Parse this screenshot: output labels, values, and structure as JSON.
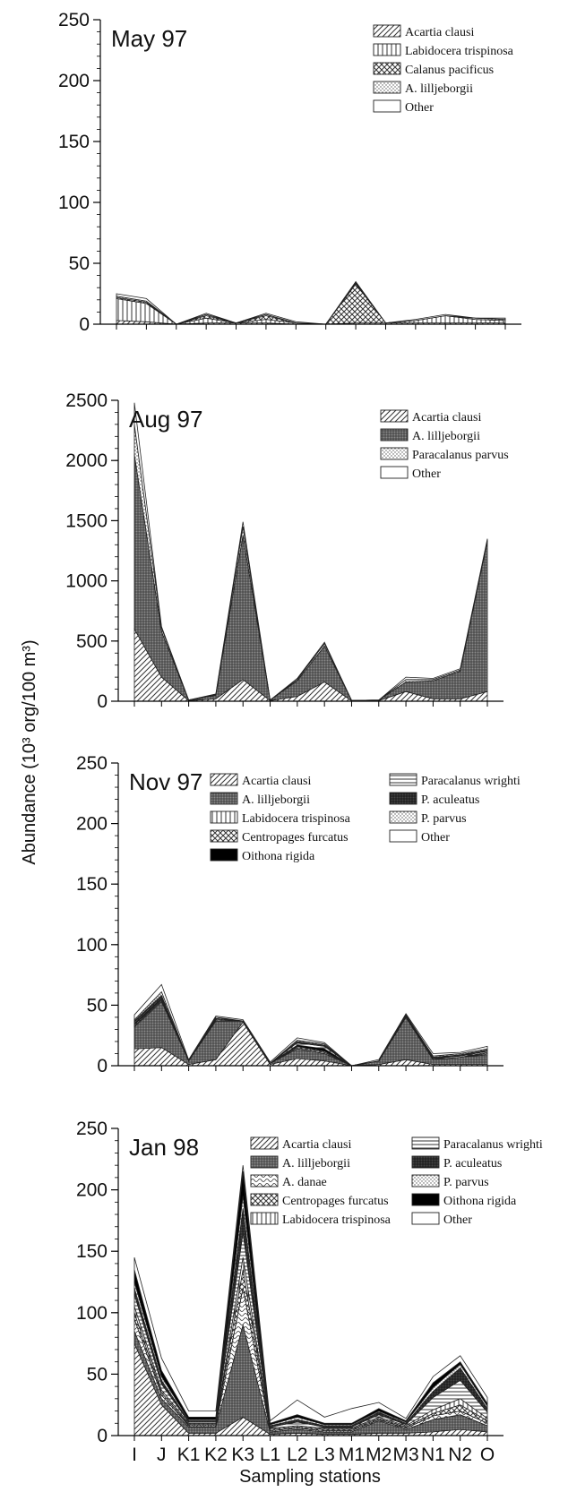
{
  "figure": {
    "ylabel": "Abundance (10³ org/100 m³)",
    "xlabel": "Sampling stations"
  },
  "chart_data": [
    {
      "type": "area",
      "title": "May 97",
      "categories": [
        "I",
        "J",
        "K1",
        "K2",
        "K3",
        "L1",
        "L2",
        "L3",
        "M1",
        "M2",
        "M3",
        "N1",
        "N2",
        "O"
      ],
      "ylim": [
        0,
        250
      ],
      "yticks": [
        0,
        50,
        100,
        150,
        200,
        250
      ],
      "show_x_labels": false,
      "legend_position": "top-right",
      "series": [
        {
          "name": "Acartia clausi",
          "pattern": "diag",
          "values": [
            3,
            2,
            0,
            1,
            1,
            1,
            0,
            0,
            1,
            1,
            1,
            1,
            1,
            1
          ]
        },
        {
          "name": "Labidocera trispinosa",
          "pattern": "vline",
          "values": [
            18,
            15,
            0,
            4,
            0,
            3,
            1,
            0,
            0,
            0,
            2,
            6,
            3,
            2
          ]
        },
        {
          "name": "Calanus pacificus",
          "pattern": "cross",
          "values": [
            1,
            1,
            0,
            2,
            0,
            3,
            0,
            0,
            32,
            0,
            0,
            0,
            0,
            0
          ]
        },
        {
          "name": "A. lilljeborgii",
          "pattern": "dots",
          "values": [
            1,
            1,
            0,
            1,
            0,
            1,
            0,
            0,
            1,
            0,
            0,
            0,
            1,
            1
          ]
        },
        {
          "name": "Other",
          "pattern": "none",
          "values": [
            2,
            2,
            0,
            1,
            0,
            1,
            1,
            0,
            1,
            0,
            1,
            1,
            0,
            1
          ]
        }
      ]
    },
    {
      "type": "area",
      "title": "Aug 97",
      "categories": [
        "I",
        "J",
        "K1",
        "K2",
        "K3",
        "L1",
        "L2",
        "L3",
        "M1",
        "M2",
        "M3",
        "N1",
        "N2",
        "O"
      ],
      "ylim": [
        0,
        2500
      ],
      "yticks": [
        0,
        500,
        1000,
        1500,
        2000,
        2500
      ],
      "show_x_labels": false,
      "legend_position": "top-right",
      "series": [
        {
          "name": "Acartia clausi",
          "pattern": "diag",
          "values": [
            600,
            200,
            5,
            20,
            180,
            5,
            40,
            160,
            3,
            5,
            80,
            20,
            20,
            80
          ]
        },
        {
          "name": "A. lilljeborgii",
          "pattern": "dense",
          "values": [
            1450,
            380,
            5,
            30,
            1200,
            5,
            130,
            300,
            3,
            5,
            80,
            150,
            230,
            1250
          ]
        },
        {
          "name": "Paracalanus parvus",
          "pattern": "dots",
          "values": [
            250,
            30,
            0,
            5,
            70,
            0,
            10,
            20,
            0,
            0,
            20,
            10,
            10,
            10
          ]
        },
        {
          "name": "Other",
          "pattern": "none",
          "values": [
            180,
            10,
            0,
            5,
            40,
            0,
            10,
            10,
            0,
            0,
            20,
            10,
            10,
            10
          ]
        }
      ]
    },
    {
      "type": "area",
      "title": "Nov 97",
      "categories": [
        "I",
        "J",
        "K1",
        "K2",
        "K3",
        "L1",
        "L2",
        "L3",
        "M1",
        "M2",
        "M3",
        "N1",
        "N2",
        "O"
      ],
      "ylim": [
        0,
        250
      ],
      "yticks": [
        0,
        50,
        100,
        150,
        200,
        250
      ],
      "show_x_labels": false,
      "legend_position": "top",
      "series": [
        {
          "name": "Acartia clausi",
          "pattern": "diag",
          "values": [
            14,
            15,
            1,
            5,
            36,
            1,
            6,
            4,
            0,
            1,
            5,
            1,
            1,
            1
          ]
        },
        {
          "name": "A. lilljeborgii",
          "pattern": "dense",
          "values": [
            18,
            38,
            3,
            32,
            1,
            1,
            8,
            6,
            0,
            3,
            35,
            4,
            6,
            8
          ]
        },
        {
          "name": "Labidocera trispinosa",
          "pattern": "vline",
          "values": [
            1,
            1,
            0,
            1,
            0,
            0,
            1,
            1,
            0,
            0,
            0,
            0,
            0,
            1
          ]
        },
        {
          "name": "Centropages furcatus",
          "pattern": "cross",
          "values": [
            1,
            1,
            0,
            1,
            0,
            0,
            1,
            1,
            0,
            0,
            0,
            0,
            0,
            1
          ]
        },
        {
          "name": "Oithona rigida",
          "pattern": "black",
          "values": [
            1,
            1,
            0,
            0,
            0,
            0,
            1,
            2,
            0,
            0,
            0,
            0,
            0,
            0
          ]
        },
        {
          "name": "Paracalanus wrighti",
          "pattern": "hline",
          "values": [
            1,
            1,
            0,
            1,
            0,
            0,
            2,
            2,
            0,
            0,
            1,
            1,
            1,
            1
          ]
        },
        {
          "name": "P. aculeatus",
          "pattern": "darkgrid",
          "values": [
            1,
            1,
            0,
            0,
            0,
            0,
            1,
            1,
            0,
            0,
            1,
            1,
            1,
            1
          ]
        },
        {
          "name": "P. parvus",
          "pattern": "dots",
          "values": [
            1,
            3,
            0,
            0,
            0,
            0,
            1,
            1,
            0,
            0,
            0,
            1,
            1,
            1
          ]
        },
        {
          "name": "Other",
          "pattern": "none",
          "values": [
            4,
            6,
            1,
            1,
            1,
            1,
            2,
            1,
            0,
            1,
            1,
            2,
            1,
            2
          ]
        }
      ]
    },
    {
      "type": "area",
      "title": "Jan 98",
      "categories": [
        "I",
        "J",
        "K1",
        "K2",
        "K3",
        "L1",
        "L2",
        "L3",
        "M1",
        "M2",
        "M3",
        "N1",
        "N2",
        "O"
      ],
      "ylim": [
        0,
        250
      ],
      "yticks": [
        0,
        50,
        100,
        150,
        200,
        250
      ],
      "show_x_labels": true,
      "legend_position": "top",
      "series": [
        {
          "name": "Acartia clausi",
          "pattern": "diag",
          "values": [
            75,
            25,
            2,
            2,
            15,
            1,
            2,
            1,
            1,
            2,
            2,
            3,
            5,
            3
          ]
        },
        {
          "name": "A. lilljeborgii",
          "pattern": "dense",
          "values": [
            10,
            5,
            5,
            5,
            75,
            2,
            3,
            2,
            2,
            10,
            3,
            10,
            12,
            5
          ]
        },
        {
          "name": "A. danae",
          "pattern": "wave",
          "values": [
            10,
            3,
            1,
            1,
            30,
            1,
            1,
            1,
            1,
            1,
            1,
            3,
            3,
            2
          ]
        },
        {
          "name": "Centropages furcatus",
          "pattern": "cross",
          "values": [
            5,
            2,
            1,
            1,
            15,
            1,
            1,
            1,
            1,
            1,
            1,
            2,
            5,
            2
          ]
        },
        {
          "name": "Labidocera trispinosa",
          "pattern": "vline",
          "values": [
            5,
            2,
            1,
            1,
            10,
            1,
            1,
            1,
            1,
            1,
            1,
            3,
            5,
            2
          ]
        },
        {
          "name": "Paracalanus wrighti",
          "pattern": "hline",
          "values": [
            10,
            5,
            1,
            1,
            20,
            1,
            3,
            1,
            1,
            2,
            1,
            10,
            15,
            5
          ]
        },
        {
          "name": "P. aculeatus",
          "pattern": "darkgrid",
          "values": [
            5,
            3,
            1,
            1,
            20,
            1,
            2,
            1,
            1,
            2,
            1,
            5,
            10,
            3
          ]
        },
        {
          "name": "P. parvus",
          "pattern": "dots",
          "values": [
            5,
            3,
            1,
            1,
            10,
            1,
            2,
            1,
            1,
            1,
            1,
            3,
            3,
            2
          ]
        },
        {
          "name": "Oithona rigida",
          "pattern": "black",
          "values": [
            10,
            5,
            2,
            2,
            20,
            1,
            2,
            1,
            1,
            2,
            1,
            4,
            2,
            2
          ]
        },
        {
          "name": "Other",
          "pattern": "none",
          "values": [
            10,
            10,
            5,
            5,
            5,
            2,
            12,
            5,
            12,
            5,
            2,
            5,
            5,
            5
          ]
        }
      ]
    }
  ]
}
